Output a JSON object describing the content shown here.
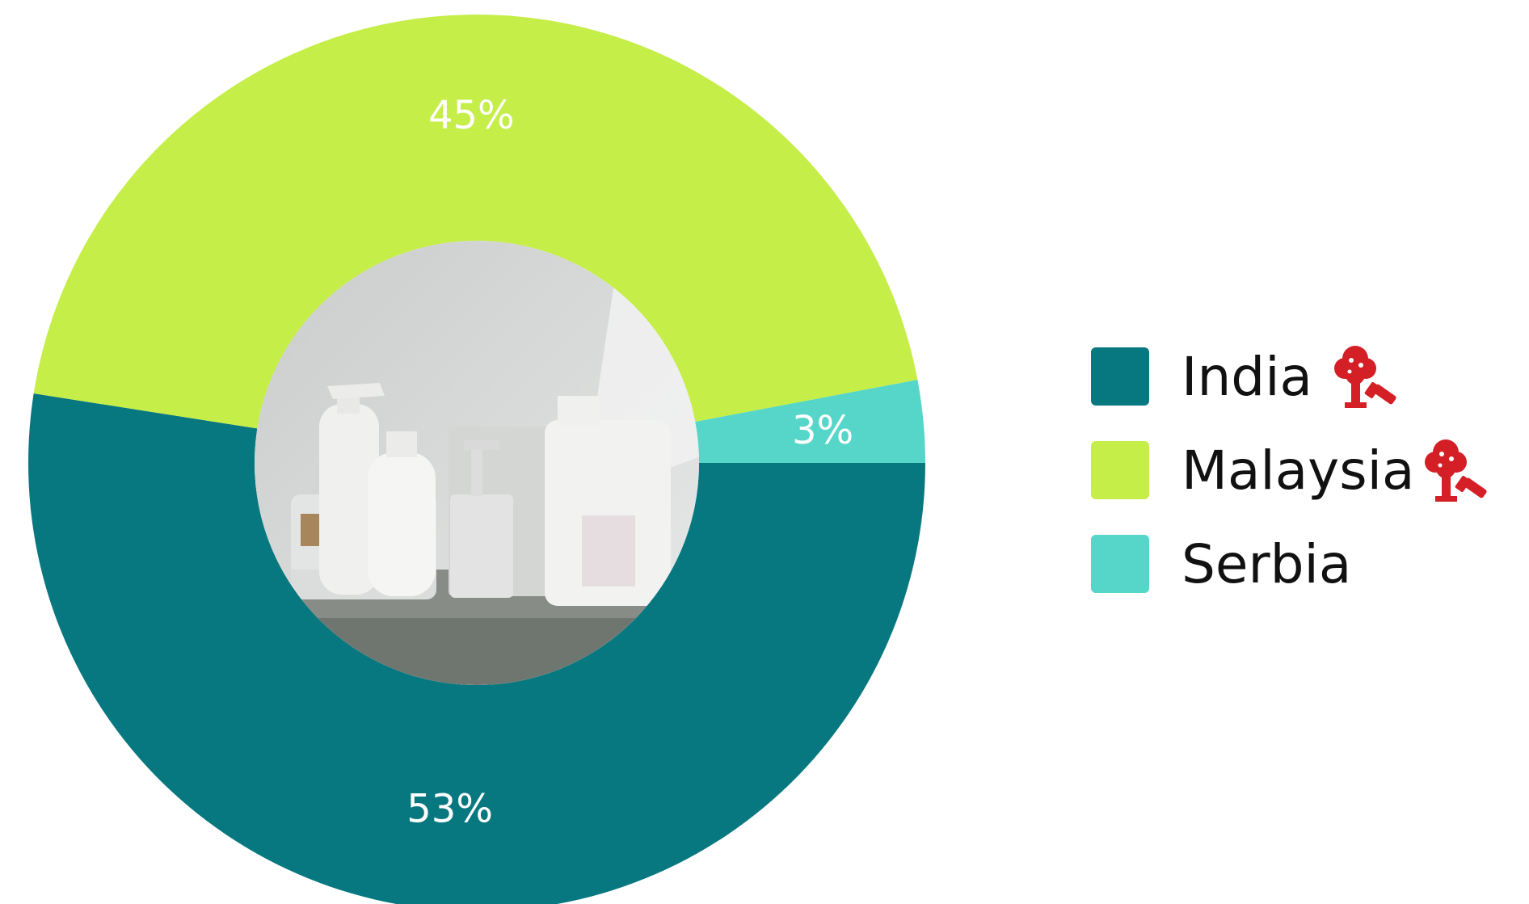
{
  "chart_data": {
    "type": "pie",
    "variant": "donut",
    "categories": [
      "India",
      "Malaysia",
      "Serbia"
    ],
    "values": [
      53,
      45,
      3
    ],
    "labels": [
      "53%",
      "45%",
      "3%"
    ],
    "colors": [
      "#087880",
      "#c5ee48",
      "#55d6c8"
    ],
    "legend_position": "right",
    "center_image": "photo of white cleaning product bottles on a shelf",
    "legend_icons": [
      "tree-brush-icon",
      "tree-brush-icon",
      ""
    ],
    "legend_icon_color": "#d41f26"
  }
}
